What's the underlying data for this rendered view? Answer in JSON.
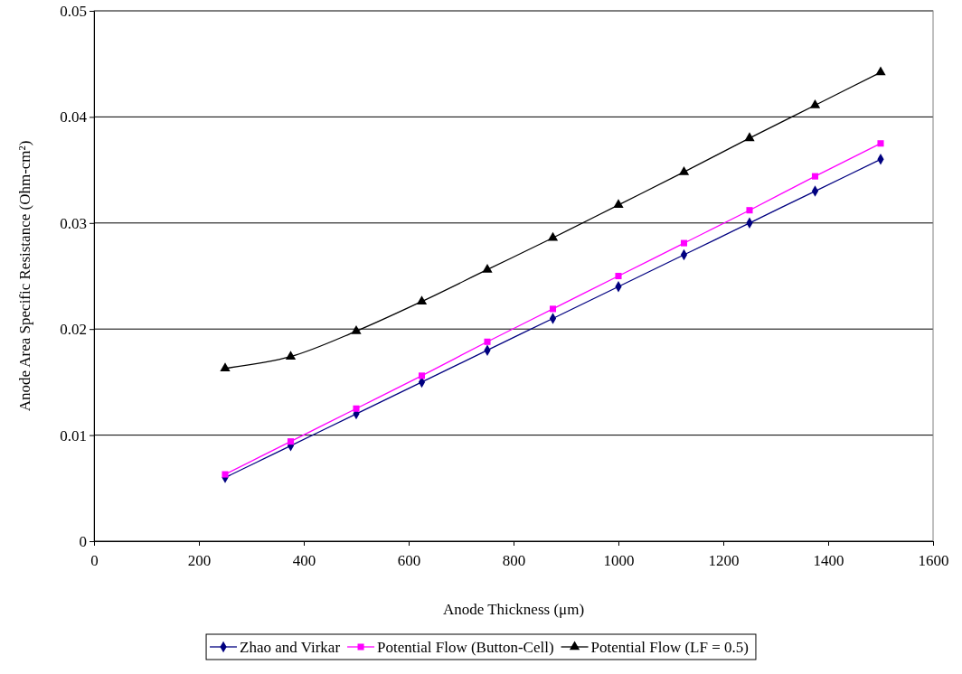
{
  "chart_data": {
    "type": "line",
    "xlabel": "Anode Thickness (μm)",
    "ylabel": "Anode Area Specific Resistance (Ohm-cm²)",
    "x": [
      250,
      375,
      500,
      625,
      750,
      875,
      1000,
      1125,
      1250,
      1375,
      1500
    ],
    "xlim": [
      0,
      1600
    ],
    "xticks": [
      0,
      200,
      400,
      600,
      800,
      1000,
      1200,
      1400,
      1600
    ],
    "ylim": [
      0,
      0.05
    ],
    "yticks": [
      0,
      0.01,
      0.02,
      0.03,
      0.04,
      0.05
    ],
    "grid": "y",
    "legend": "bottom",
    "line_style": "solid",
    "series": [
      {
        "name": "Zhao and Virkar",
        "color": "#000080",
        "marker": "diamond",
        "values": [
          0.006,
          0.009,
          0.012,
          0.015,
          0.018,
          0.021,
          0.024,
          0.027,
          0.03,
          0.033,
          0.036
        ]
      },
      {
        "name": "Potential Flow (Button-Cell)",
        "color": "#ff00ff",
        "marker": "square",
        "values": [
          0.0063,
          0.0094,
          0.0125,
          0.0156,
          0.0188,
          0.0219,
          0.025,
          0.0281,
          0.0312,
          0.0344,
          0.0375
        ]
      },
      {
        "name": "Potential Flow (LF = 0.5)",
        "color": "#000000",
        "marker": "triangle",
        "values": [
          0.0163,
          0.0174,
          0.0198,
          0.0226,
          0.0256,
          0.0286,
          0.0317,
          0.0348,
          0.038,
          0.0411,
          0.0442
        ]
      }
    ]
  }
}
